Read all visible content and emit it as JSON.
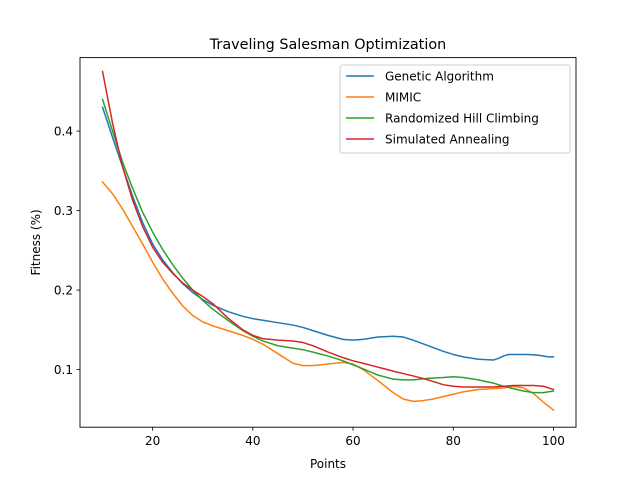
{
  "chart_data": {
    "type": "line",
    "title": "Traveling Salesman Optimization",
    "xlabel": "Points",
    "ylabel": "Fitness (%)",
    "xlim": [
      5.5,
      104.5
    ],
    "ylim": [
      0.0275,
      0.4925
    ],
    "xticks": [
      20,
      40,
      60,
      80,
      100
    ],
    "yticks": [
      0.1,
      0.2,
      0.3,
      0.4
    ],
    "xtick_labels": [
      "20",
      "40",
      "60",
      "80",
      "100"
    ],
    "ytick_labels": [
      "0.1",
      "0.2",
      "0.3",
      "0.4"
    ],
    "grid": false,
    "legend_position": "upper right",
    "series": [
      {
        "name": "Genetic Algorithm",
        "color": "#1f77b4",
        "x": [
          10,
          12,
          14,
          16,
          18,
          20,
          22,
          24,
          26,
          28,
          30,
          32,
          35,
          38,
          40,
          42,
          45,
          48,
          50,
          52,
          55,
          58,
          60,
          62,
          65,
          68,
          70,
          72,
          75,
          78,
          80,
          82,
          85,
          88,
          89,
          90,
          91,
          93,
          95,
          97,
          99,
          100
        ],
        "y": [
          0.43,
          0.392,
          0.355,
          0.318,
          0.285,
          0.258,
          0.238,
          0.222,
          0.208,
          0.197,
          0.188,
          0.181,
          0.173,
          0.167,
          0.164,
          0.162,
          0.159,
          0.156,
          0.153,
          0.149,
          0.143,
          0.138,
          0.137,
          0.138,
          0.141,
          0.142,
          0.141,
          0.137,
          0.13,
          0.123,
          0.119,
          0.116,
          0.113,
          0.112,
          0.114,
          0.117,
          0.119,
          0.119,
          0.119,
          0.118,
          0.116,
          0.116
        ]
      },
      {
        "name": "MIMIC",
        "color": "#ff7f0e",
        "x": [
          10,
          12,
          14,
          16,
          18,
          20,
          22,
          24,
          26,
          28,
          30,
          32,
          35,
          38,
          40,
          42,
          45,
          48,
          50,
          52,
          55,
          58,
          60,
          62,
          65,
          68,
          70,
          72,
          74,
          76,
          78,
          80,
          82,
          85,
          88,
          90,
          92,
          94,
          96,
          98,
          100
        ],
        "y": [
          0.336,
          0.321,
          0.302,
          0.28,
          0.258,
          0.235,
          0.214,
          0.196,
          0.18,
          0.168,
          0.16,
          0.155,
          0.149,
          0.143,
          0.138,
          0.132,
          0.12,
          0.108,
          0.105,
          0.105,
          0.107,
          0.109,
          0.107,
          0.1,
          0.086,
          0.071,
          0.063,
          0.06,
          0.061,
          0.063,
          0.066,
          0.069,
          0.072,
          0.075,
          0.076,
          0.077,
          0.079,
          0.077,
          0.07,
          0.059,
          0.049
        ]
      },
      {
        "name": "Randomized Hill Climbing",
        "color": "#2ca02c",
        "x": [
          10,
          12,
          14,
          16,
          18,
          20,
          22,
          24,
          26,
          28,
          30,
          32,
          35,
          38,
          40,
          42,
          45,
          48,
          50,
          52,
          55,
          58,
          60,
          62,
          65,
          68,
          70,
          72,
          75,
          78,
          80,
          82,
          85,
          88,
          90,
          92,
          94,
          96,
          98,
          100
        ],
        "y": [
          0.44,
          0.4,
          0.361,
          0.328,
          0.298,
          0.273,
          0.251,
          0.232,
          0.215,
          0.2,
          0.187,
          0.176,
          0.162,
          0.149,
          0.142,
          0.136,
          0.13,
          0.127,
          0.125,
          0.122,
          0.117,
          0.111,
          0.106,
          0.101,
          0.093,
          0.088,
          0.087,
          0.087,
          0.089,
          0.09,
          0.091,
          0.09,
          0.087,
          0.083,
          0.079,
          0.076,
          0.073,
          0.071,
          0.071,
          0.073
        ]
      },
      {
        "name": "Simulated Annealing",
        "color": "#d62728",
        "x": [
          10,
          12,
          14,
          16,
          18,
          20,
          22,
          24,
          26,
          28,
          30,
          32,
          35,
          38,
          40,
          42,
          45,
          48,
          50,
          52,
          55,
          58,
          60,
          62,
          65,
          68,
          70,
          72,
          75,
          78,
          80,
          82,
          85,
          88,
          90,
          92,
          94,
          96,
          98,
          100
        ],
        "y": [
          0.475,
          0.41,
          0.355,
          0.313,
          0.28,
          0.254,
          0.235,
          0.221,
          0.209,
          0.2,
          0.192,
          0.183,
          0.165,
          0.15,
          0.143,
          0.139,
          0.137,
          0.136,
          0.134,
          0.13,
          0.122,
          0.115,
          0.111,
          0.108,
          0.103,
          0.098,
          0.095,
          0.092,
          0.087,
          0.081,
          0.079,
          0.078,
          0.078,
          0.078,
          0.079,
          0.08,
          0.08,
          0.08,
          0.079,
          0.075
        ]
      }
    ]
  }
}
